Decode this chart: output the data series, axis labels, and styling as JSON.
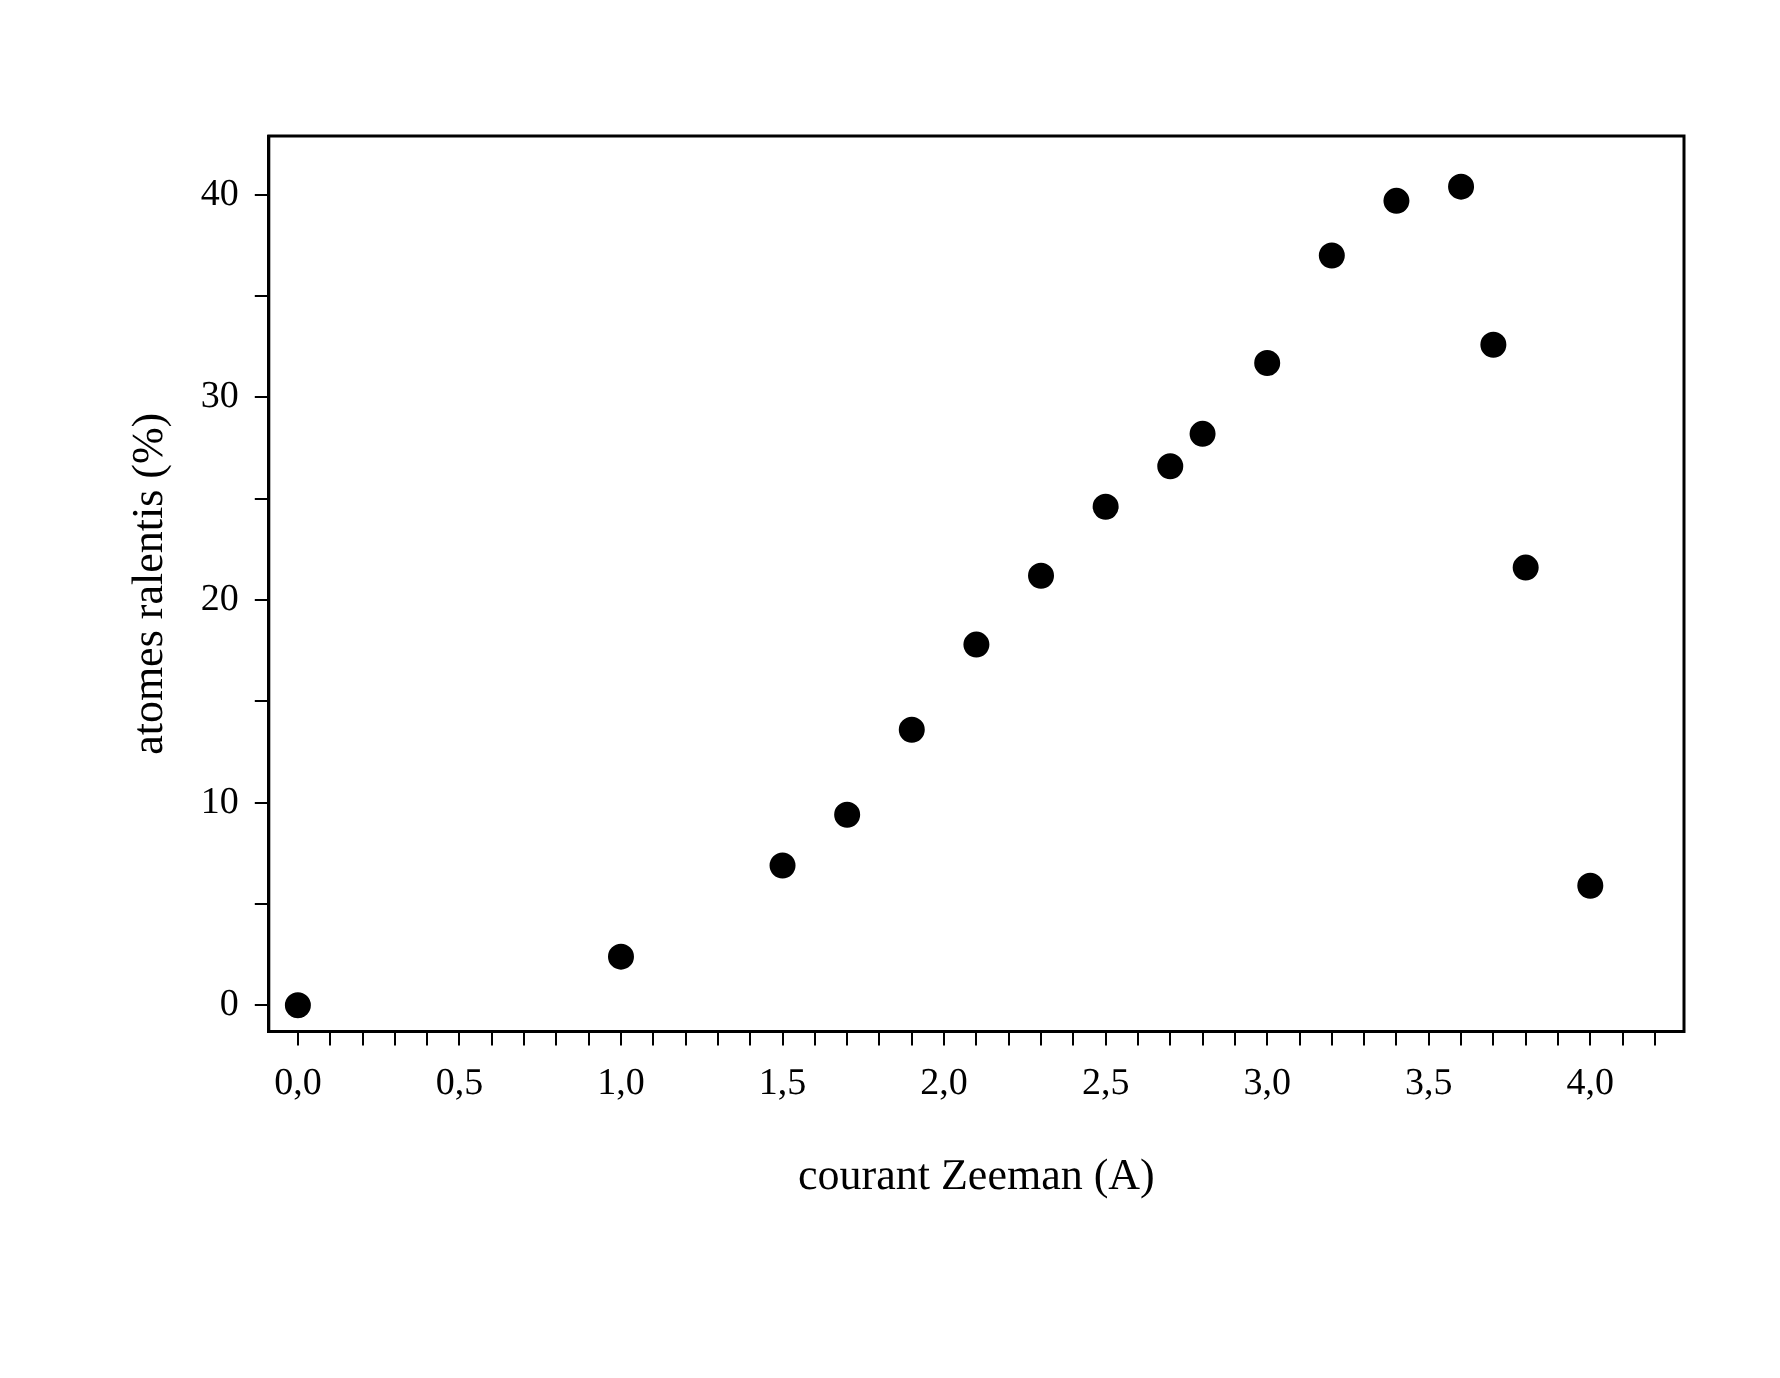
{
  "chart_data": {
    "type": "scatter",
    "xlabel": "courant Zeeman (A)",
    "ylabel": "atomes ralentis (%)",
    "x": [
      0,
      1.0,
      1.5,
      1.7,
      1.9,
      2.1,
      2.3,
      2.5,
      2.7,
      2.8,
      3.0,
      3.2,
      3.4,
      3.6,
      3.7,
      3.8,
      4.0
    ],
    "series": [
      {
        "color": "#000000",
        "values": [
          0,
          2.4,
          6.9,
          9.4,
          13.6,
          17.8,
          21.2,
          24.6,
          26.6,
          28.2,
          31.7,
          37.0,
          39.7,
          40.4,
          32.6,
          21.6,
          5.9
        ]
      }
    ],
    "xlim": [
      -0.09,
      4.29
    ],
    "ylim": [
      -1.3,
      42.9
    ],
    "xticks": [
      {
        "value": 0,
        "label": "0,0"
      },
      {
        "value": 0.1,
        "label": null
      },
      {
        "value": 0.2,
        "label": null
      },
      {
        "value": 0.3,
        "label": null
      },
      {
        "value": 0.4,
        "label": null
      },
      {
        "value": 0.5,
        "label": "0,5"
      },
      {
        "value": 0.6,
        "label": null
      },
      {
        "value": 0.7,
        "label": null
      },
      {
        "value": 0.8,
        "label": null
      },
      {
        "value": 0.9,
        "label": null
      },
      {
        "value": 1,
        "label": "1,0"
      },
      {
        "value": 1.1,
        "label": null
      },
      {
        "value": 1.2,
        "label": null
      },
      {
        "value": 1.3,
        "label": null
      },
      {
        "value": 1.4,
        "label": null
      },
      {
        "value": 1.5,
        "label": "1,5"
      },
      {
        "value": 1.6,
        "label": null
      },
      {
        "value": 1.7,
        "label": null
      },
      {
        "value": 1.8,
        "label": null
      },
      {
        "value": 1.9,
        "label": null
      },
      {
        "value": 2,
        "label": "2,0"
      },
      {
        "value": 2.1,
        "label": null
      },
      {
        "value": 2.2,
        "label": null
      },
      {
        "value": 2.3,
        "label": null
      },
      {
        "value": 2.4,
        "label": null
      },
      {
        "value": 2.5,
        "label": "2,5"
      },
      {
        "value": 2.6,
        "label": null
      },
      {
        "value": 2.7,
        "label": null
      },
      {
        "value": 2.8,
        "label": null
      },
      {
        "value": 2.9,
        "label": null
      },
      {
        "value": 3,
        "label": "3,0"
      },
      {
        "value": 3.1,
        "label": null
      },
      {
        "value": 3.2,
        "label": null
      },
      {
        "value": 3.3,
        "label": null
      },
      {
        "value": 3.4,
        "label": null
      },
      {
        "value": 3.5,
        "label": "3,5"
      },
      {
        "value": 3.6,
        "label": null
      },
      {
        "value": 3.7,
        "label": null
      },
      {
        "value": 3.8,
        "label": null
      },
      {
        "value": 3.9,
        "label": null
      },
      {
        "value": 4,
        "label": "4,0"
      },
      {
        "value": 4.1,
        "label": null
      },
      {
        "value": 4.2,
        "label": null
      }
    ],
    "yticks": [
      0,
      {
        "value": 5,
        "label": null
      },
      10,
      {
        "value": 15,
        "label": null
      },
      20,
      {
        "value": 25,
        "label": null
      },
      30,
      {
        "value": 35,
        "label": null
      },
      40
    ],
    "grid": false,
    "legend": false,
    "marker": "circle"
  }
}
